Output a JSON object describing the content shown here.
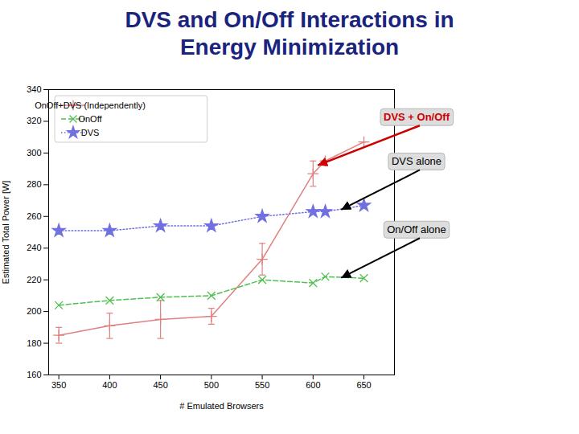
{
  "chart_data": {
    "type": "line",
    "title": "DVS and On/Off Interactions in\nEnergy Minimization",
    "x_label": "# Emulated Browsers",
    "y_label": "Estimated Total Power [W]",
    "x": [
      350,
      400,
      450,
      500,
      550,
      600,
      612,
      650
    ],
    "xlim": [
      340,
      680
    ],
    "ylim": [
      160,
      340
    ],
    "xticks": [
      350,
      400,
      450,
      500,
      550,
      600,
      650
    ],
    "yticks": [
      160,
      180,
      200,
      220,
      240,
      260,
      280,
      300,
      320,
      340
    ],
    "grid": false,
    "legend": "upper left",
    "series": [
      {
        "name": "OnOff+DVS (Independently)",
        "color": "#e08080",
        "marker": "plus",
        "line_style": "solid",
        "values": [
          185,
          191,
          195,
          197,
          233,
          287,
          295,
          307
        ],
        "yerr": [
          5,
          8,
          12,
          5,
          10,
          8,
          0,
          0
        ]
      },
      {
        "name": "OnOff",
        "color": "#50c050",
        "marker": "times",
        "line_style": "dashed",
        "values": [
          204,
          207,
          209,
          210,
          220,
          218,
          222,
          221
        ]
      },
      {
        "name": "DVS",
        "color": "#7070e0",
        "marker": "star",
        "line_style": "dotted",
        "values": [
          251,
          251,
          254,
          254,
          260,
          263,
          263,
          267
        ]
      }
    ],
    "annotations": [
      {
        "text": "DVS + On/Off",
        "color": "#cc0000",
        "x": 605,
        "y": 292
      },
      {
        "text": "DVS alone",
        "color": "#000000",
        "x": 628,
        "y": 264
      },
      {
        "text": "On/Off alone",
        "color": "#000000",
        "x": 628,
        "y": 221
      }
    ]
  }
}
